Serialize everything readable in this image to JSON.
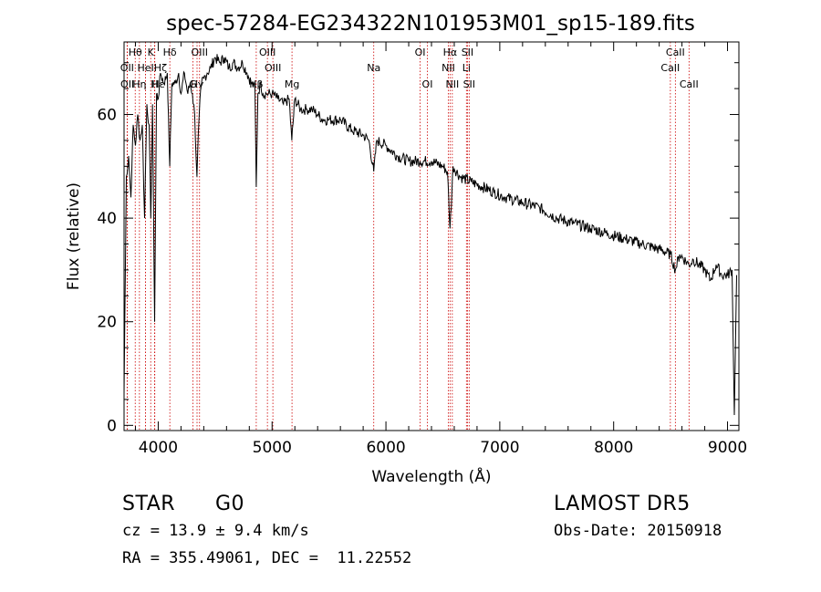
{
  "chart_data": {
    "type": "line",
    "title": "spec-57284-EG234322N101953M01_sp15-189.fits",
    "xlabel": "Wavelength (Å)",
    "ylabel": "Flux (relative)",
    "xlim": [
      3700,
      9100
    ],
    "ylim": [
      -1,
      74
    ],
    "xticks": [
      4000,
      5000,
      6000,
      7000,
      8000,
      9000
    ],
    "yticks": [
      0,
      20,
      40,
      60
    ],
    "grid": false,
    "series": [
      {
        "x": [
          3700,
          3720,
          3740,
          3760,
          3780,
          3800,
          3820,
          3840,
          3860,
          3880,
          3900,
          3920,
          3935,
          3950,
          3968,
          3985,
          4000,
          4020,
          4050,
          4080,
          4101,
          4120,
          4150,
          4180,
          4200,
          4230,
          4260,
          4280,
          4300,
          4320,
          4340,
          4360,
          4380,
          4400,
          4430,
          4460,
          4500,
          4540,
          4580,
          4620,
          4660,
          4700,
          4740,
          4780,
          4820,
          4850,
          4861,
          4875,
          4900,
          4920,
          4950,
          5000,
          5050,
          5100,
          5150,
          5173,
          5200,
          5250,
          5300,
          5350,
          5400,
          5450,
          5500,
          5600,
          5700,
          5800,
          5850,
          5893,
          5920,
          6000,
          6100,
          6200,
          6300,
          6400,
          6500,
          6540,
          6563,
          6590,
          6650,
          6750,
          6850,
          6950,
          7050,
          7200,
          7350,
          7500,
          7650,
          7800,
          7950,
          8100,
          8250,
          8400,
          8500,
          8542,
          8580,
          8662,
          8700,
          8800,
          8850,
          8900,
          8950,
          9000,
          9040,
          9060,
          9080
        ],
        "y": [
          6,
          48,
          52,
          44,
          58,
          54,
          60,
          55,
          58,
          40,
          62,
          58,
          40,
          62,
          20,
          64,
          63,
          68,
          66,
          68,
          50,
          66,
          66,
          68,
          64,
          68,
          64,
          66,
          64,
          60,
          48,
          60,
          66,
          67,
          68,
          69,
          71,
          70,
          71,
          69,
          70,
          69,
          70,
          68,
          66,
          65,
          46,
          64,
          66,
          64,
          64,
          64,
          63,
          62,
          63,
          55,
          63,
          61,
          61,
          61,
          60,
          59,
          59,
          59,
          57,
          56,
          55,
          49,
          55,
          54,
          52,
          51,
          51,
          51,
          50,
          49,
          38,
          50,
          48,
          47,
          46,
          45,
          44,
          43,
          42,
          40,
          39,
          38,
          37,
          36,
          35,
          34,
          33,
          30,
          33,
          31,
          32,
          30,
          28,
          31,
          29,
          29,
          30,
          2,
          29
        ]
      }
    ],
    "lines": [
      {
        "name": "Hθ",
        "x": 3798
      },
      {
        "name": "OII",
        "x": 3727
      },
      {
        "name": "OII",
        "x": 3729
      },
      {
        "name": "K",
        "x": 3934
      },
      {
        "name": "H",
        "x": 3968
      },
      {
        "name": "Hε",
        "x": 3970
      },
      {
        "name": "Hη",
        "x": 3835
      },
      {
        "name": "Hζ",
        "x": 3889
      },
      {
        "name": "HeI",
        "x": 3889
      },
      {
        "name": "Hδ",
        "x": 4102
      },
      {
        "name": "G",
        "x": 4305
      },
      {
        "name": "Hγ",
        "x": 4341
      },
      {
        "name": "OIII",
        "x": 4363
      },
      {
        "name": "Hβ",
        "x": 4861
      },
      {
        "name": "OIII",
        "x": 4959
      },
      {
        "name": "OIII",
        "x": 5007
      },
      {
        "name": "Mg",
        "x": 5175
      },
      {
        "name": "Na",
        "x": 5893
      },
      {
        "name": "OI",
        "x": 6300
      },
      {
        "name": "OI",
        "x": 6364
      },
      {
        "name": "NII",
        "x": 6548
      },
      {
        "name": "Hα",
        "x": 6563
      },
      {
        "name": "NII",
        "x": 6583
      },
      {
        "name": "Li",
        "x": 6707
      },
      {
        "name": "SII",
        "x": 6716
      },
      {
        "name": "SII",
        "x": 6731
      },
      {
        "name": "CaII",
        "x": 8498
      },
      {
        "name": "CaII",
        "x": 8542
      },
      {
        "name": "CaII",
        "x": 8662
      }
    ],
    "line_labels": [
      {
        "text": "Hθ",
        "x": 3798,
        "row": 0
      },
      {
        "text": "K",
        "x": 3934,
        "row": 0
      },
      {
        "text": "Hδ",
        "x": 4102,
        "row": 0
      },
      {
        "text": "OIII",
        "x": 4363,
        "row": 0
      },
      {
        "text": "OIII",
        "x": 4959,
        "row": 0
      },
      {
        "text": "OI",
        "x": 6300,
        "row": 0
      },
      {
        "text": "Hα",
        "x": 6563,
        "row": 0
      },
      {
        "text": "SII",
        "x": 6716,
        "row": 0
      },
      {
        "text": "CaII",
        "x": 8542,
        "row": 0
      },
      {
        "text": "OII",
        "x": 3727,
        "row": 1
      },
      {
        "text": "HeI",
        "x": 3889,
        "row": 1
      },
      {
        "text": "Hζ",
        "x": 4020,
        "row": 1
      },
      {
        "text": "OIII",
        "x": 5007,
        "row": 1
      },
      {
        "text": "Na",
        "x": 5893,
        "row": 1
      },
      {
        "text": "NII",
        "x": 6548,
        "row": 1
      },
      {
        "text": "Li",
        "x": 6707,
        "row": 1
      },
      {
        "text": "CaII",
        "x": 8498,
        "row": 1
      },
      {
        "text": "OII",
        "x": 3729,
        "row": 2
      },
      {
        "text": "Hη",
        "x": 3835,
        "row": 2
      },
      {
        "text": "H",
        "x": 3968,
        "row": 2
      },
      {
        "text": "Hε",
        "x": 4000,
        "row": 2
      },
      {
        "text": "G",
        "x": 4305,
        "row": 2
      },
      {
        "text": "Hγ",
        "x": 4341,
        "row": 2
      },
      {
        "text": "Hβ",
        "x": 4861,
        "row": 2
      },
      {
        "text": "Mg",
        "x": 5175,
        "row": 2
      },
      {
        "text": "OI",
        "x": 6364,
        "row": 2
      },
      {
        "text": "NII",
        "x": 6583,
        "row": 2
      },
      {
        "text": "SII",
        "x": 6731,
        "row": 2
      },
      {
        "text": "CaII",
        "x": 8662,
        "row": 2
      }
    ]
  },
  "info": {
    "object_class": "STAR",
    "subclass": "G0",
    "survey": "LAMOST DR5",
    "cz": "cz = 13.9 ± 9.4 km/s",
    "obs_date": "Obs-Date: 20150918",
    "coords": "RA = 355.49061, DEC =  11.22552"
  },
  "colors": {
    "spectrum": "#000000",
    "line_markers": "#cc0000",
    "axes": "#000000"
  }
}
